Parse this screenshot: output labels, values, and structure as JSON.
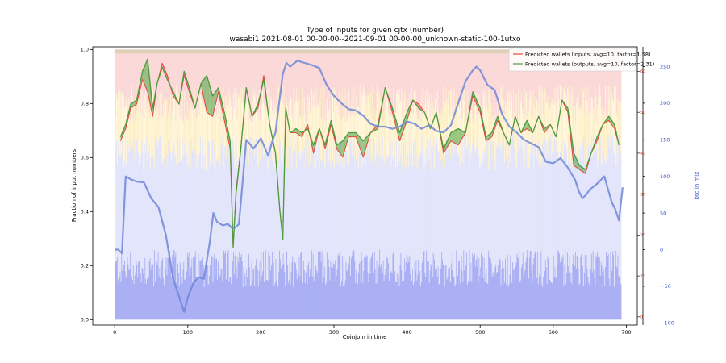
{
  "chart_data": {
    "type": "line",
    "title": "Type of inputs for given cjtx (number)",
    "subtitle": "wasabi1 2021-08-01 00-00-00--2021-09-01 00-00-00_unknown-static-100-1utxo",
    "xlabel": "Coinjoin in time",
    "ylabel": "Fraction of input numbers",
    "y2label": "btc in mix",
    "xlim": [
      -30,
      715
    ],
    "ylim": [
      -0.02,
      1.01
    ],
    "y2lim": [
      -103,
      277
    ],
    "y3lim": [
      -2,
      66
    ],
    "xticks": [
      0,
      100,
      200,
      300,
      400,
      500,
      600,
      700
    ],
    "yticks": [
      0.0,
      0.2,
      0.4,
      0.6,
      0.8,
      1.0
    ],
    "y2ticks": [
      -100,
      -50,
      0,
      50,
      100,
      150,
      200,
      250
    ],
    "y3ticks": [
      0,
      10,
      20,
      30,
      40,
      50,
      60
    ],
    "legend_position": "top-right",
    "grid": false,
    "series": [
      {
        "name": "Predicted wallets (inputs, avg=10, factor=1.58)",
        "color": "#e8453c",
        "axis": "y3",
        "x": [
          8,
          15,
          22,
          30,
          38,
          45,
          52,
          58,
          65,
          72,
          80,
          88,
          95,
          102,
          110,
          118,
          126,
          134,
          142,
          150,
          158,
          162,
          166,
          172,
          180,
          188,
          196,
          204,
          212,
          220,
          226,
          230,
          234,
          240,
          248,
          256,
          264,
          272,
          280,
          288,
          296,
          304,
          312,
          320,
          330,
          340,
          350,
          360,
          370,
          380,
          390,
          400,
          408,
          416,
          424,
          432,
          440,
          450,
          460,
          470,
          480,
          490,
          500,
          508,
          516,
          524,
          532,
          540,
          548,
          556,
          564,
          572,
          580,
          588,
          596,
          604,
          612,
          620,
          628,
          636,
          644,
          652,
          660,
          668,
          676,
          684,
          690
        ],
        "values": [
          43,
          46,
          51,
          52,
          58,
          55,
          49,
          57,
          62,
          59,
          54,
          52,
          59,
          55,
          51,
          57,
          50,
          49,
          55,
          48,
          41,
          17,
          31,
          40,
          56,
          49,
          51,
          59,
          47,
          40,
          26,
          19,
          51,
          45,
          45,
          44,
          47,
          40,
          46,
          41,
          47,
          41,
          39,
          44,
          44,
          39,
          45,
          47,
          56,
          50,
          43,
          48,
          53,
          52,
          50,
          46,
          50,
          40,
          43,
          42,
          45,
          54,
          50,
          43,
          44,
          48,
          45,
          42,
          49,
          45,
          46,
          45,
          49,
          45,
          47,
          44,
          53,
          50,
          37,
          36,
          35,
          40,
          43,
          47,
          48,
          46,
          42
        ]
      },
      {
        "name": "Predicted wallets (outputs, avg=10, factor=2.31)",
        "color": "#4d9a3f",
        "axis": "y3",
        "x": [
          8,
          15,
          22,
          30,
          38,
          45,
          52,
          58,
          65,
          72,
          80,
          88,
          95,
          102,
          110,
          118,
          126,
          134,
          142,
          150,
          158,
          162,
          166,
          172,
          180,
          188,
          196,
          204,
          212,
          220,
          226,
          230,
          234,
          240,
          248,
          256,
          264,
          272,
          280,
          288,
          296,
          304,
          312,
          320,
          330,
          340,
          350,
          360,
          370,
          380,
          390,
          400,
          408,
          416,
          424,
          432,
          440,
          450,
          460,
          470,
          480,
          490,
          500,
          508,
          516,
          524,
          532,
          540,
          548,
          556,
          564,
          572,
          580,
          588,
          596,
          604,
          612,
          620,
          628,
          636,
          644,
          652,
          660,
          668,
          676,
          684,
          690
        ],
        "values": [
          44,
          47,
          52,
          53,
          60,
          63,
          51,
          57,
          61,
          58,
          55,
          52,
          60,
          56,
          51,
          57,
          59,
          54,
          56,
          50,
          43,
          17,
          30,
          40,
          56,
          49,
          52,
          58,
          47,
          40,
          26,
          19,
          51,
          45,
          46,
          45,
          46,
          42,
          46,
          42,
          48,
          42,
          43,
          45,
          45,
          43,
          45,
          46,
          56,
          51,
          45,
          50,
          53,
          51,
          50,
          46,
          50,
          41,
          45,
          46,
          45,
          55,
          51,
          44,
          45,
          49,
          45,
          42,
          49,
          45,
          48,
          45,
          49,
          46,
          47,
          44,
          53,
          51,
          40,
          37,
          36,
          40,
          44,
          47,
          49,
          47,
          42
        ]
      },
      {
        "name": "btc in mix",
        "color": "#6f87d6",
        "axis": "y2",
        "x": [
          0,
          5,
          10,
          15,
          22,
          30,
          40,
          50,
          60,
          70,
          80,
          90,
          95,
          100,
          108,
          115,
          122,
          130,
          135,
          140,
          148,
          155,
          160,
          165,
          170,
          180,
          190,
          200,
          210,
          215,
          220,
          225,
          230,
          235,
          240,
          250,
          260,
          270,
          280,
          290,
          300,
          310,
          320,
          330,
          340,
          350,
          360,
          370,
          380,
          390,
          400,
          410,
          420,
          430,
          440,
          450,
          460,
          470,
          480,
          490,
          495,
          500,
          505,
          510,
          520,
          530,
          540,
          550,
          560,
          570,
          580,
          590,
          600,
          610,
          620,
          630,
          635,
          640,
          645,
          650,
          660,
          670,
          680,
          685,
          690,
          695
        ],
        "values": [
          0,
          0,
          -5,
          100,
          96,
          93,
          92,
          70,
          58,
          20,
          -40,
          -70,
          -85,
          -65,
          -45,
          -38,
          -40,
          10,
          50,
          38,
          33,
          35,
          30,
          30,
          35,
          150,
          138,
          152,
          128,
          146,
          160,
          200,
          240,
          255,
          250,
          258,
          255,
          252,
          248,
          225,
          210,
          200,
          192,
          190,
          183,
          172,
          168,
          168,
          165,
          168,
          175,
          172,
          165,
          170,
          162,
          160,
          170,
          200,
          230,
          245,
          250,
          245,
          235,
          225,
          218,
          185,
          168,
          160,
          150,
          145,
          140,
          120,
          118,
          125,
          112,
          95,
          80,
          70,
          75,
          82,
          90,
          100,
          65,
          55,
          40,
          85
        ]
      }
    ],
    "background_stack": {
      "description": "Per-coinjoin stacked fraction bars (blue/yellow/red/tan)",
      "approx_blue_top": 0.62,
      "approx_yellow_top": 0.8,
      "approx_red_top": 0.98
    }
  }
}
